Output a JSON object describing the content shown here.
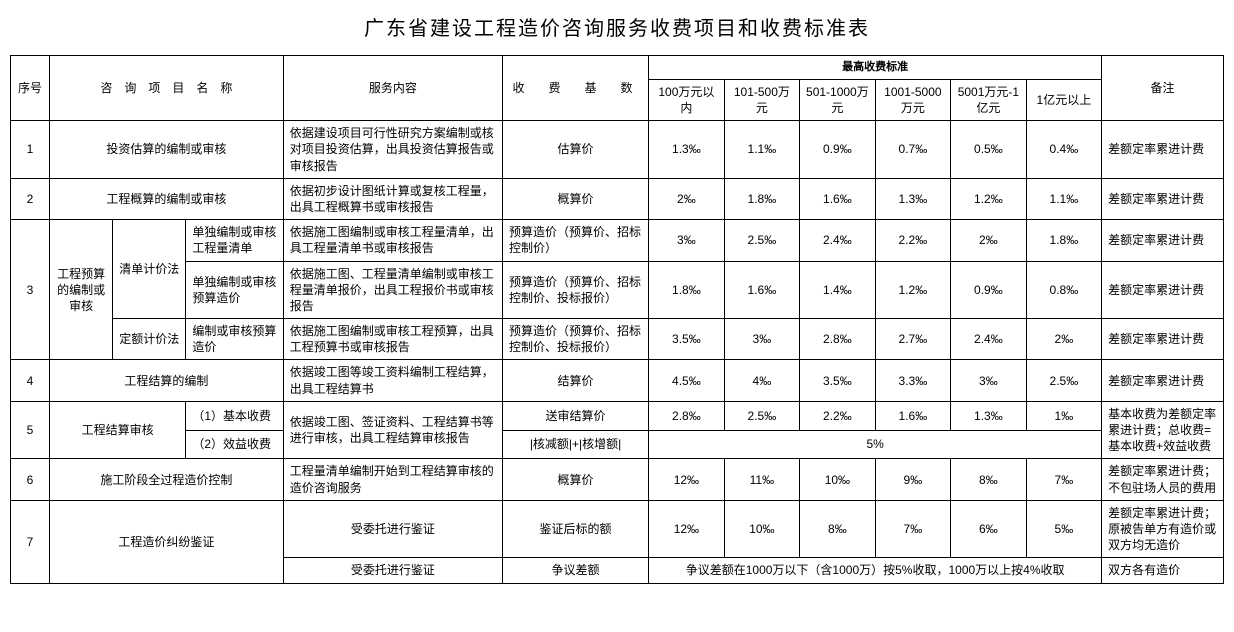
{
  "title": "广东省建设工程造价咨询服务收费项目和收费标准表",
  "header": {
    "seq": "序号",
    "item_name": "咨 询 项 目 名 称",
    "service": "服务内容",
    "fee_base": "收 费 基 数",
    "max_fee": "最高收费标准",
    "note": "备注",
    "tiers": {
      "t1": "100万元以内",
      "t2": "101-500万元",
      "t3": "501-1000万元",
      "t4": "1001-5000万元",
      "t5": "5001万元-1亿元",
      "t6": "1亿元以上"
    }
  },
  "r1": {
    "seq": "1",
    "name": "投资估算的编制或审核",
    "svc": "依据建设项目可行性研究方案编制或核对项目投资估算，出具投资估算报告或审核报告",
    "base": "估算价",
    "v": [
      "1.3‰",
      "1.1‰",
      "0.9‰",
      "0.7‰",
      "0.5‰",
      "0.4‰"
    ],
    "note": "差额定率累进计费"
  },
  "r2": {
    "seq": "2",
    "name": "工程概算的编制或审核",
    "svc": "依据初步设计图纸计算或复核工程量，出具工程概算书或审核报告",
    "base": "概算价",
    "v": [
      "2‰",
      "1.8‰",
      "1.6‰",
      "1.3‰",
      "1.2‰",
      "1.1‰"
    ],
    "note": "差额定率累进计费"
  },
  "r3": {
    "seq": "3",
    "group": "工程预算的编制或审核",
    "m1": "清单计价法",
    "a": {
      "sub": "单独编制或审核工程量清单",
      "svc": "依据施工图编制或审核工程量清单，出具工程量清单书或审核报告",
      "base": "预算造价（预算价、招标控制价）",
      "v": [
        "3‰",
        "2.5‰",
        "2.4‰",
        "2.2‰",
        "2‰",
        "1.8‰"
      ],
      "note": "差额定率累进计费"
    },
    "b": {
      "sub": "单独编制或审核预算造价",
      "svc": "依据施工图、工程量清单编制或审核工程量清单报价，出具工程报价书或审核报告",
      "base": "预算造价（预算价、招标控制价、投标报价）",
      "v": [
        "1.8‰",
        "1.6‰",
        "1.4‰",
        "1.2‰",
        "0.9‰",
        "0.8‰"
      ],
      "note": "差额定率累进计费"
    },
    "m2": "定额计价法",
    "c": {
      "sub": "编制或审核预算造价",
      "svc": "依据施工图编制或审核工程预算，出具工程预算书或审核报告",
      "base": "预算造价（预算价、招标控制价、投标报价）",
      "v": [
        "3.5‰",
        "3‰",
        "2.8‰",
        "2.7‰",
        "2.4‰",
        "2‰"
      ],
      "note": "差额定率累进计费"
    }
  },
  "r4": {
    "seq": "4",
    "name": "工程结算的编制",
    "svc": "依据竣工图等竣工资料编制工程结算，出具工程结算书",
    "base": "结算价",
    "v": [
      "4.5‰",
      "4‰",
      "3.5‰",
      "3.3‰",
      "3‰",
      "2.5‰"
    ],
    "note": "差额定率累进计费"
  },
  "r5": {
    "seq": "5",
    "name": "工程结算审核",
    "sub1": "（1）基本收费",
    "sub2": "（2）效益收费",
    "svc": "依据竣工图、签证资料、工程结算书等进行审核，出具工程结算审核报告",
    "base1": "送审结算价",
    "v": [
      "2.8‰",
      "2.5‰",
      "2.2‰",
      "1.6‰",
      "1.3‰",
      "1‰"
    ],
    "base2": "|核减额|+|核增额|",
    "flat": "5%",
    "note": "基本收费为差额定率累进计费；总收费=基本收费+效益收费"
  },
  "r6": {
    "seq": "6",
    "name": "施工阶段全过程造价控制",
    "svc": "工程量清单编制开始到工程结算审核的造价咨询服务",
    "base": "概算价",
    "v": [
      "12‰",
      "11‰",
      "10‰",
      "9‰",
      "8‰",
      "7‰"
    ],
    "note": "差额定率累进计费；不包驻场人员的费用"
  },
  "r7": {
    "seq": "7",
    "name": "工程造价纠纷鉴证",
    "svc1": "受委托进行鉴证",
    "base1": "鉴证后标的额",
    "v": [
      "12‰",
      "10‰",
      "8‰",
      "7‰",
      "6‰",
      "5‰"
    ],
    "note1": "差额定率累进计费；原被告单方有造价或双方均无造价",
    "svc2": "受委托进行鉴证",
    "base2": "争议差额",
    "flat": "争议差额在1000万以下（含1000万）按5%收取，1000万以上按4%收取",
    "note2": "双方各有造价"
  }
}
